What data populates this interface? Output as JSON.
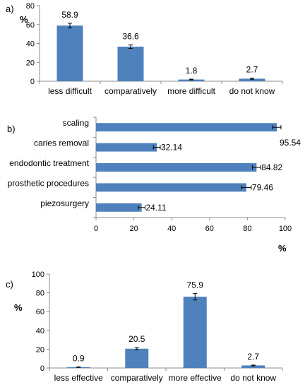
{
  "chart_data": [
    {
      "type": "bar",
      "panel_label": "a)",
      "ylabel": "%",
      "ylim": [
        0,
        80
      ],
      "yticks": [
        0,
        20,
        40,
        60,
        80
      ],
      "categories": [
        "less difficult",
        "comparatively",
        "more difficult",
        "do not know"
      ],
      "values": [
        58.9,
        36.6,
        1.8,
        2.7
      ],
      "errors": [
        2.5,
        1.8,
        0.4,
        0.6
      ],
      "bar_color": "#4f81bd",
      "grid": false
    },
    {
      "type": "bar",
      "orientation": "horizontal",
      "panel_label": "b)",
      "xlabel": "%",
      "xlim": [
        0,
        100
      ],
      "xticks": [
        0,
        20,
        40,
        60,
        80,
        100
      ],
      "categories": [
        "scaling",
        "caries removal",
        "endodontic treatment",
        "prosthetic procedures",
        "piezosurgery"
      ],
      "values": [
        95.54,
        32.14,
        84.82,
        79.46,
        24.11
      ],
      "errors": [
        2.2,
        1.8,
        2.2,
        2.6,
        1.8
      ],
      "bar_color": "#4f81bd",
      "grid": false
    },
    {
      "type": "bar",
      "panel_label": "c)",
      "ylabel": "%",
      "ylim": [
        0,
        100
      ],
      "yticks": [
        0,
        20,
        40,
        60,
        80,
        100
      ],
      "categories": [
        "less effective",
        "comparatively",
        "more effective",
        "do not know"
      ],
      "values": [
        0.9,
        20.5,
        75.9,
        2.7
      ],
      "errors": [
        0.3,
        1.2,
        3.5,
        0.4
      ],
      "bar_color": "#4f81bd",
      "grid": false
    }
  ]
}
